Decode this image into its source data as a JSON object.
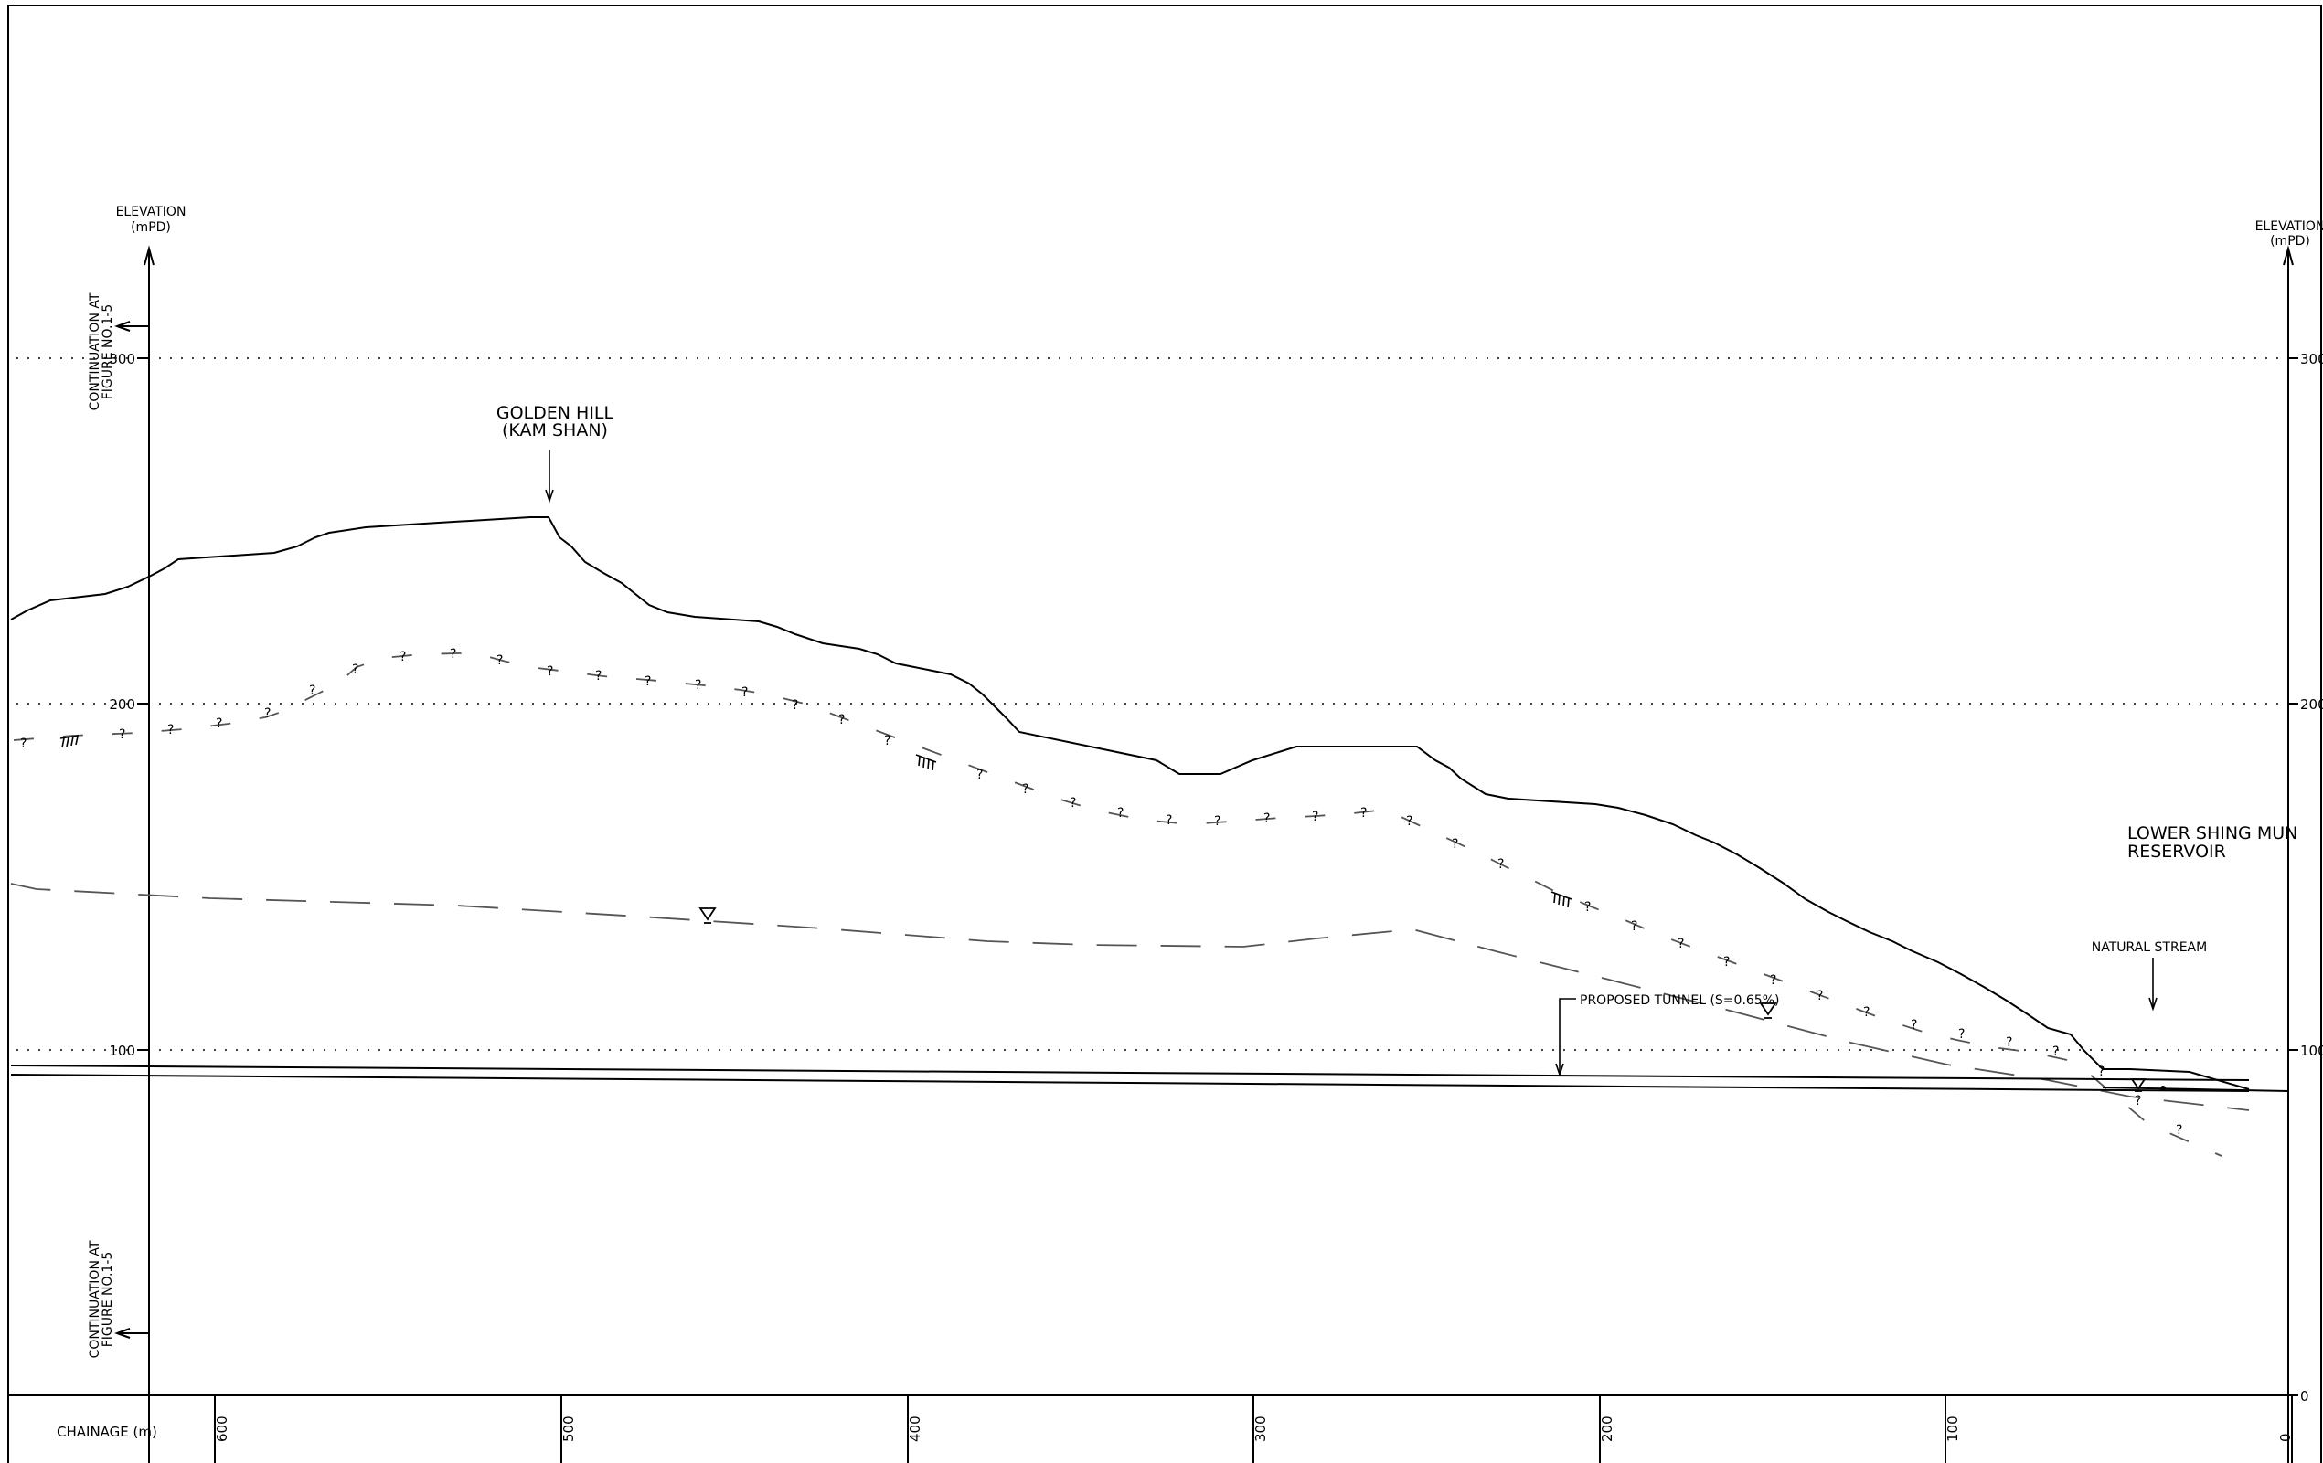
{
  "labels": {
    "elevation_left_line1": "ELEVATION",
    "elevation_left_line2": "(mPD)",
    "elevation_right_line1": "ELEVATION",
    "elevation_right_line2": "(mPD)",
    "continuation_top_line1": "CONTINUATION AT",
    "continuation_top_line2": "FIGURE NO.1-5",
    "continuation_bottom_line1": "CONTINUATION AT",
    "continuation_bottom_line2": "FIGURE NO.1-5",
    "golden_hill_line1": "GOLDEN HILL",
    "golden_hill_line2": "(KAM SHAN)",
    "reservoir_line1": "LOWER SHING MUN",
    "reservoir_line2": "RESERVOIR",
    "natural_stream": "NATURAL STREAM",
    "proposed_tunnel": "PROPOSED TUNNEL (S=0.65%)",
    "chainage_label": "CHAINAGE (m)"
  },
  "elevation_ticks_left": [
    "300",
    "200",
    "100"
  ],
  "elevation_ticks_right": [
    "300",
    "200",
    "100",
    "0"
  ],
  "chainage_ticks": [
    "600",
    "500",
    "400",
    "300",
    "200",
    "100",
    "0"
  ],
  "uncertain_marker": "?",
  "colors": {
    "line": "#000000",
    "secondary_line": "#555555"
  }
}
